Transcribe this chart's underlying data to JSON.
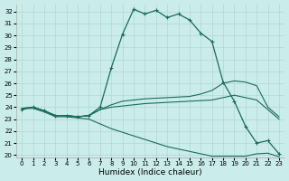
{
  "xlabel": "Humidex (Indice chaleur)",
  "background_color": "#caecea",
  "grid_color": "#aed8d4",
  "line_color": "#1a6b5a",
  "xlim": [
    -0.5,
    23.5
  ],
  "ylim": [
    19.8,
    32.6
  ],
  "x_ticks": [
    0,
    1,
    2,
    3,
    4,
    5,
    6,
    7,
    8,
    9,
    10,
    11,
    12,
    13,
    14,
    15,
    16,
    17,
    18,
    19,
    20,
    21,
    22,
    23
  ],
  "y_ticks": [
    20,
    21,
    22,
    23,
    24,
    25,
    26,
    27,
    28,
    29,
    30,
    31,
    32
  ],
  "series": [
    {
      "y": [
        23.8,
        24.0,
        23.7,
        23.3,
        23.3,
        23.2,
        23.3,
        24.0,
        27.3,
        30.1,
        32.2,
        31.8,
        32.1,
        31.5,
        31.8,
        31.3,
        30.2,
        29.5,
        26.1,
        24.5,
        22.4,
        21.0,
        21.2,
        20.1
      ],
      "marker": true,
      "lw": 0.9
    },
    {
      "y": [
        23.9,
        24.0,
        23.7,
        23.3,
        23.3,
        23.2,
        23.3,
        23.8,
        24.2,
        24.5,
        24.6,
        24.7,
        24.75,
        24.8,
        24.85,
        24.9,
        25.1,
        25.4,
        26.0,
        26.2,
        26.1,
        25.8,
        24.0,
        23.2
      ],
      "marker": false,
      "lw": 0.8
    },
    {
      "y": [
        23.9,
        24.0,
        23.7,
        23.3,
        23.3,
        23.2,
        23.3,
        23.8,
        24.0,
        24.1,
        24.2,
        24.3,
        24.35,
        24.4,
        24.45,
        24.5,
        24.55,
        24.6,
        24.8,
        25.0,
        24.8,
        24.6,
        23.8,
        23.0
      ],
      "marker": false,
      "lw": 0.8
    },
    {
      "y": [
        23.9,
        23.9,
        23.6,
        23.2,
        23.2,
        23.1,
        23.0,
        22.6,
        22.2,
        21.9,
        21.6,
        21.3,
        21.0,
        20.7,
        20.5,
        20.3,
        20.1,
        19.9,
        19.9,
        19.9,
        19.9,
        20.1,
        20.15,
        19.85
      ],
      "marker": false,
      "lw": 0.8
    }
  ]
}
